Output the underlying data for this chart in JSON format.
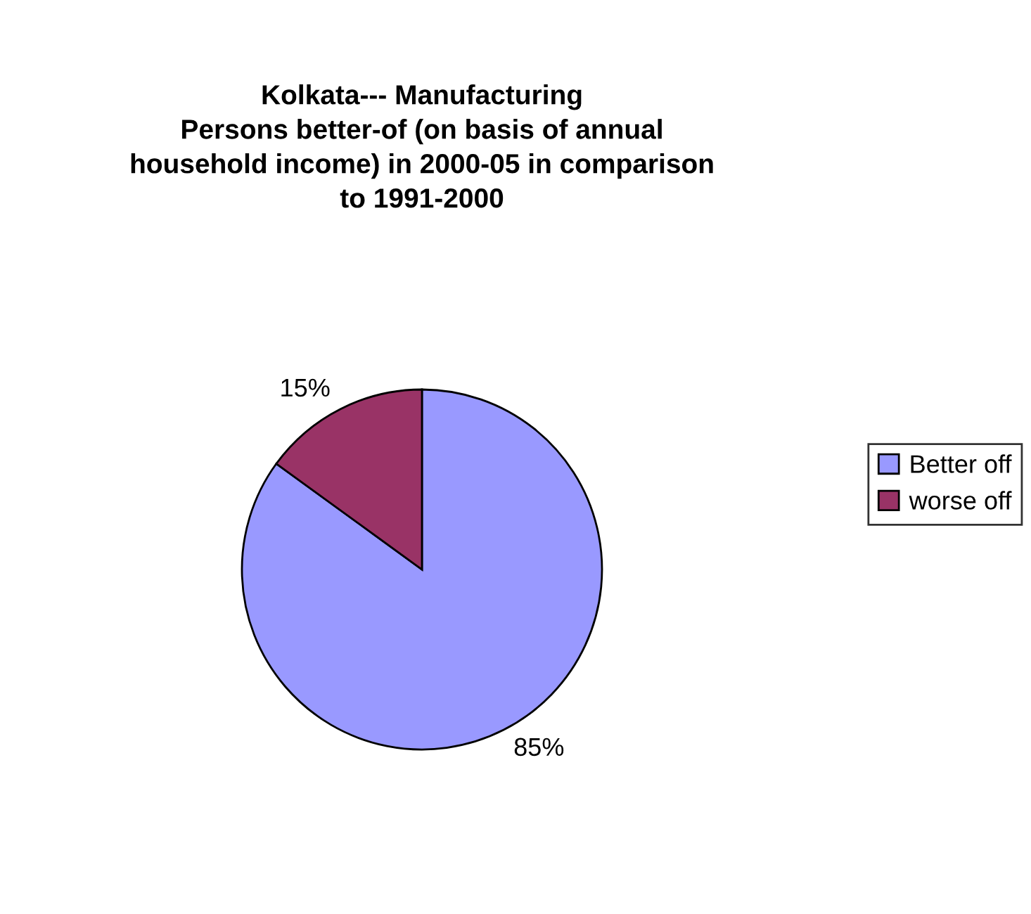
{
  "chart_data": {
    "type": "pie",
    "title": "Kolkata--- Manufacturing\nPersons better-of (on basis of annual\nhousehold income) in 2000-05 in comparison\nto 1991-2000",
    "categories": [
      "Better off",
      "worse off"
    ],
    "values": [
      85,
      15
    ],
    "colors": [
      "#9999ff",
      "#993366"
    ],
    "value_labels": [
      "85%",
      "15%"
    ],
    "legend": "right"
  }
}
